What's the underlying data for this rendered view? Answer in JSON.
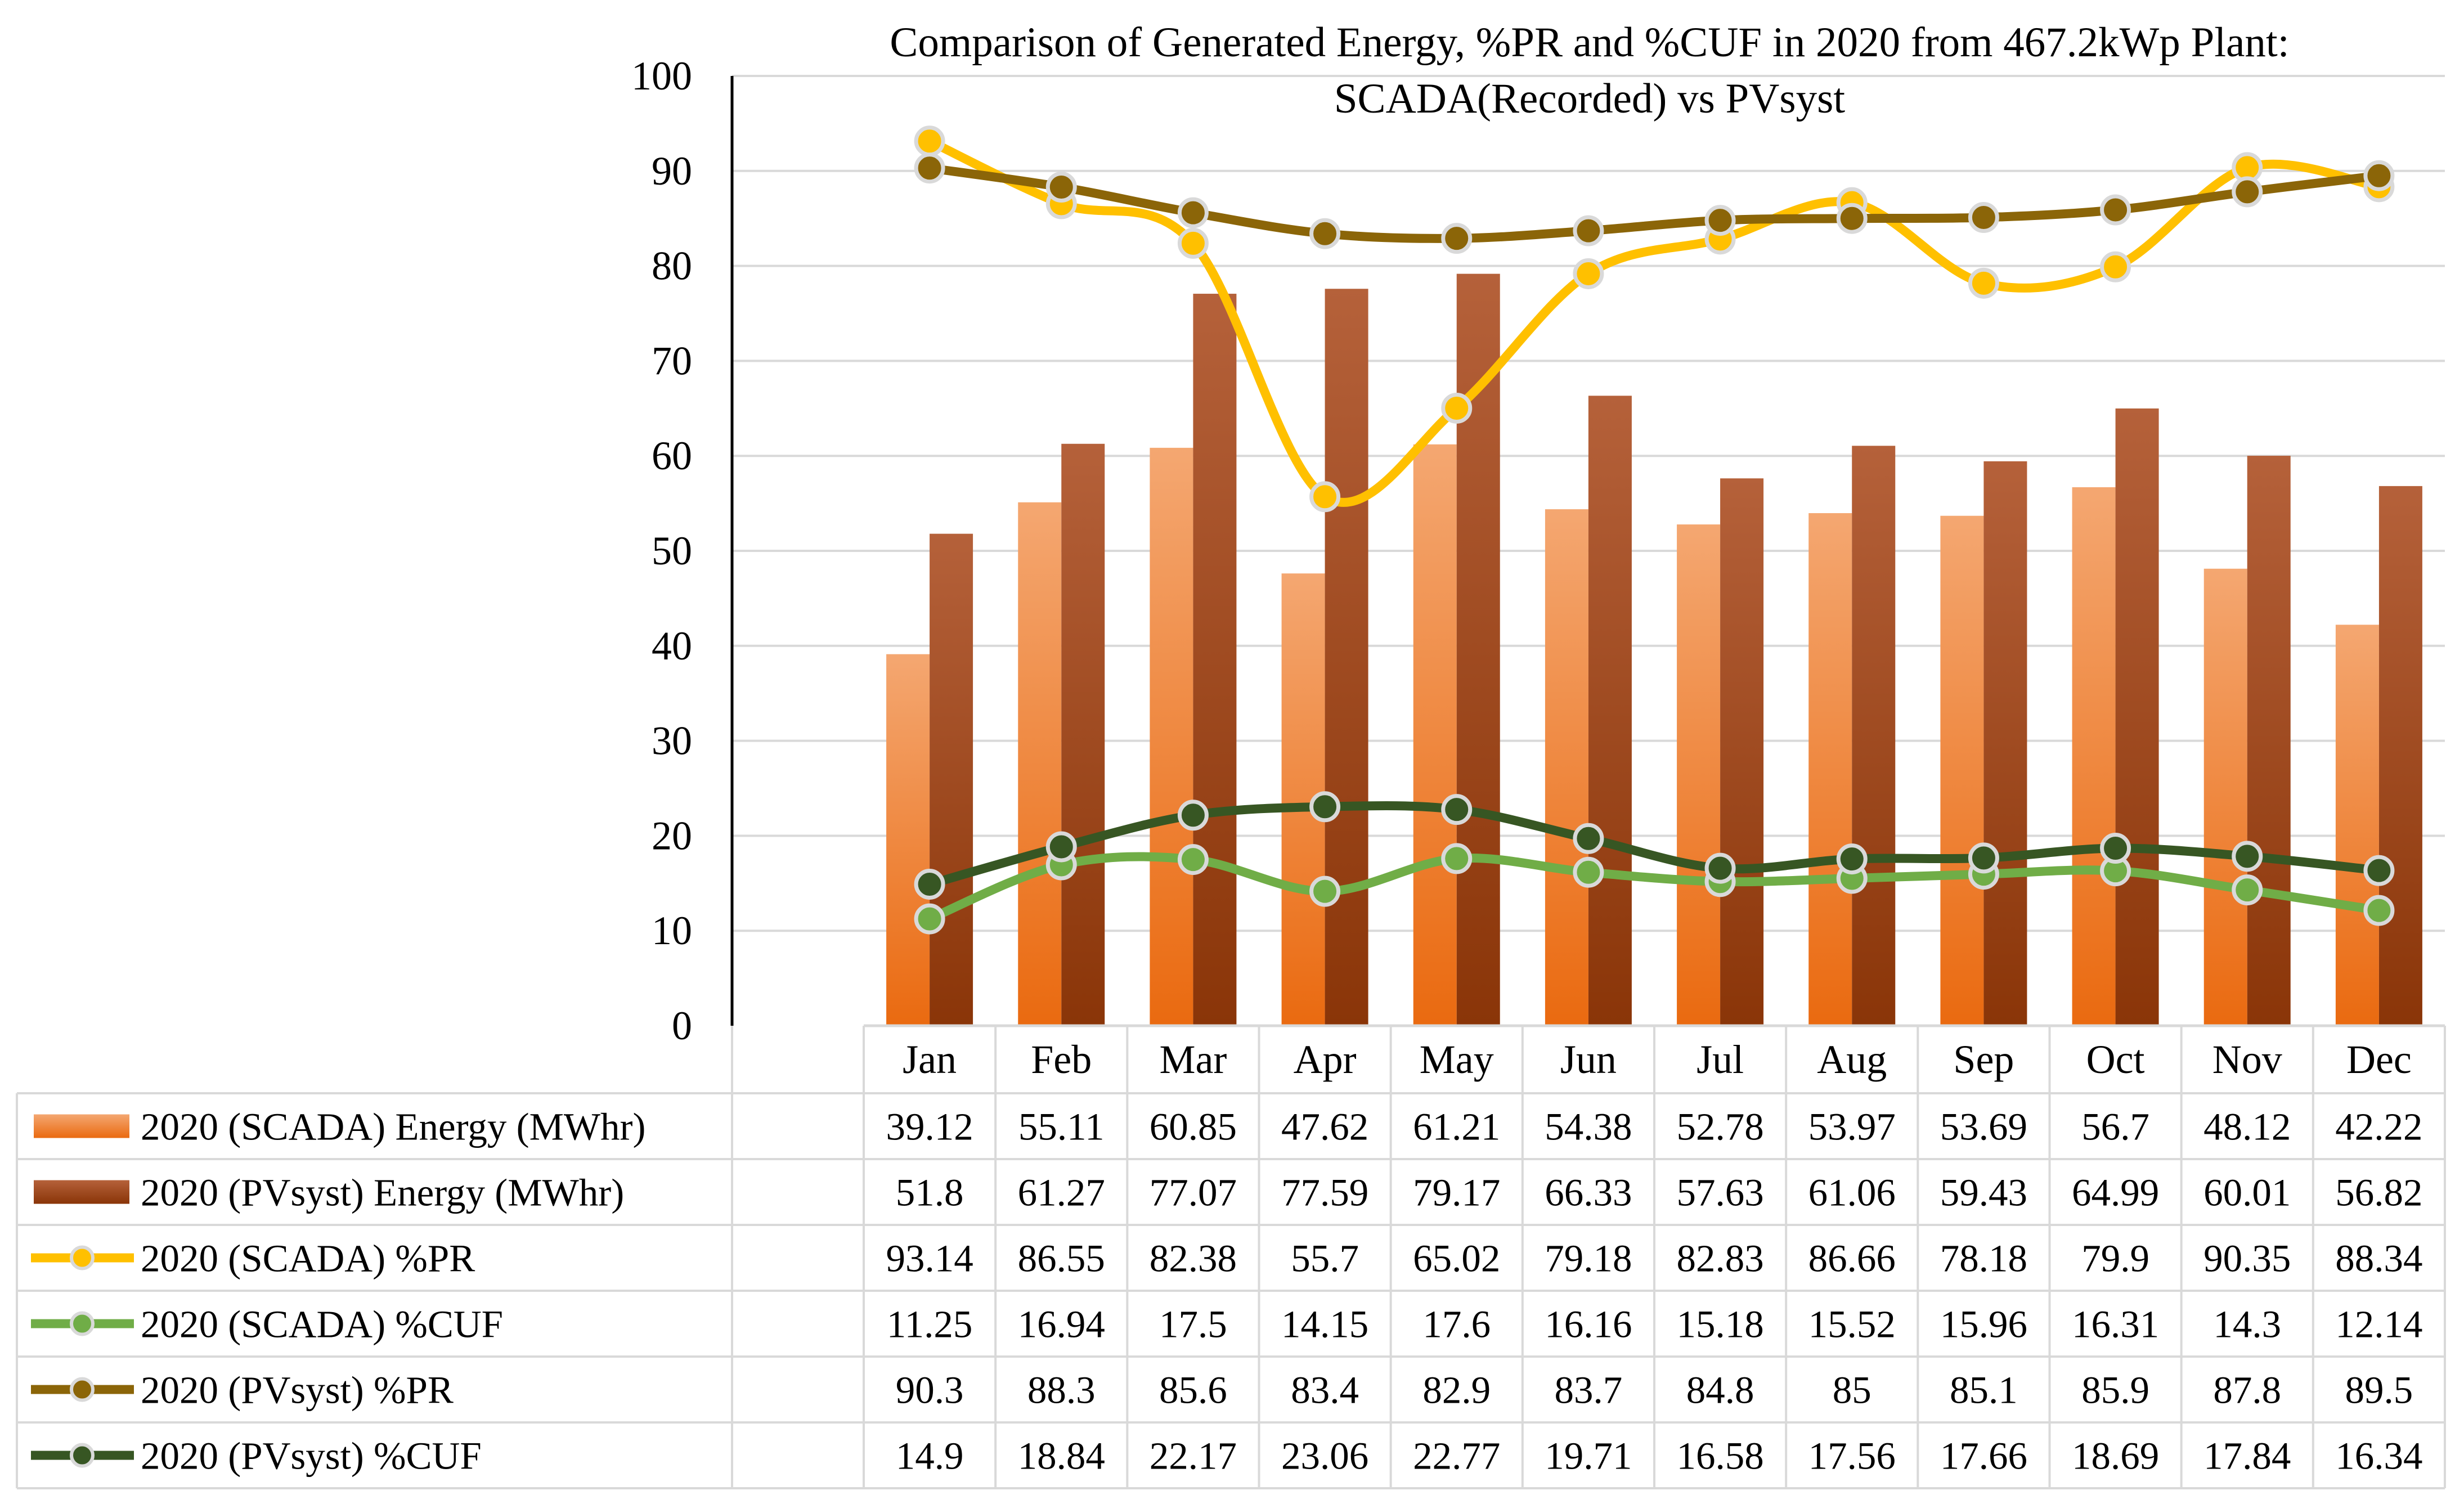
{
  "chart_data": {
    "type": "bar",
    "title": "Comparison of Generated Energy, %PR and %CUF in 2020 from 467.2kWp Plant:",
    "subtitle": "SCADA(Recorded) vs PVsyst",
    "ylim": [
      0,
      100
    ],
    "yticks": [
      0,
      10,
      20,
      30,
      40,
      50,
      60,
      70,
      80,
      90,
      100
    ],
    "grid": true,
    "categories": [
      "Jan",
      "Feb",
      "Mar",
      "Apr",
      "May",
      "Jun",
      "Jul",
      "Aug",
      "Sep",
      "Oct",
      "Nov",
      "Dec"
    ],
    "series": [
      {
        "name": "2020 (SCADA) Energy (MWhr)",
        "kind": "bar",
        "color": "#ED7D31",
        "values": [
          "39.12",
          "55.11",
          "60.85",
          "47.62",
          "61.21",
          "54.38",
          "52.78",
          "53.97",
          "53.69",
          "56.7",
          "48.12",
          "42.22"
        ]
      },
      {
        "name": "2020 (PVsyst) Energy (MWhr)",
        "kind": "bar",
        "color": "#9E4A1A",
        "values": [
          "51.8",
          "61.27",
          "77.07",
          "77.59",
          "79.17",
          "66.33",
          "57.63",
          "61.06",
          "59.43",
          "64.99",
          "60.01",
          "56.82"
        ]
      },
      {
        "name": "2020 (SCADA) %PR",
        "kind": "line",
        "color": "#FFC000",
        "values": [
          "93.14",
          "86.55",
          "82.38",
          "55.7",
          "65.02",
          "79.18",
          "82.83",
          "86.66",
          "78.18",
          "79.9",
          "90.35",
          "88.34"
        ]
      },
      {
        "name": "2020 (SCADA) %CUF",
        "kind": "line",
        "color": "#70AD47",
        "values": [
          "11.25",
          "16.94",
          "17.5",
          "14.15",
          "17.6",
          "16.16",
          "15.18",
          "15.52",
          "15.96",
          "16.31",
          "14.3",
          "12.14"
        ]
      },
      {
        "name": "2020 (PVsyst) %PR",
        "kind": "line",
        "color": "#8B6508",
        "values": [
          "90.3",
          "88.3",
          "85.6",
          "83.4",
          "82.9",
          "83.7",
          "84.8",
          "85",
          "85.1",
          "85.9",
          "87.8",
          "89.5"
        ]
      },
      {
        "name": "2020 (PVsyst) %CUF",
        "kind": "line",
        "color": "#375623",
        "values": [
          "14.9",
          "18.84",
          "22.17",
          "23.06",
          "22.77",
          "19.71",
          "16.58",
          "17.56",
          "17.66",
          "18.69",
          "17.84",
          "16.34"
        ]
      }
    ]
  }
}
